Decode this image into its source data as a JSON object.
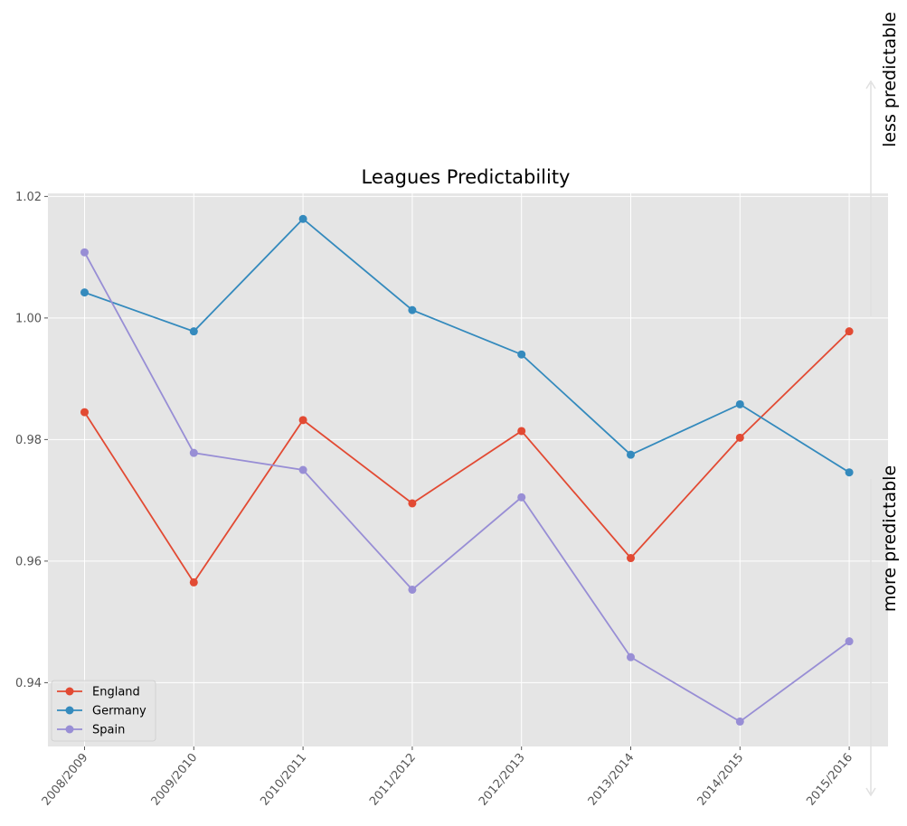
{
  "chart_data": {
    "type": "line",
    "title": "Leagues Predictability",
    "xlabel": "",
    "ylabel": "",
    "categories": [
      "2008/2009",
      "2009/2010",
      "2010/2011",
      "2011/2012",
      "2012/2013",
      "2013/2014",
      "2014/2015",
      "2015/2016"
    ],
    "ylim": [
      0.9295,
      1.0205
    ],
    "yticks": [
      0.94,
      0.96,
      0.98,
      1.0,
      1.02
    ],
    "ytick_labels": [
      "0.94",
      "0.96",
      "0.98",
      "1.00",
      "1.02"
    ],
    "grid": true,
    "legend_position": "lower-left",
    "series": [
      {
        "name": "England",
        "color": "#E24A33",
        "marker": "circle",
        "values": [
          0.9845,
          0.9565,
          0.9832,
          0.9695,
          0.9814,
          0.9605,
          0.9803,
          0.9978
        ]
      },
      {
        "name": "Germany",
        "color": "#348ABD",
        "marker": "circle",
        "values": [
          1.0042,
          0.9978,
          1.0163,
          1.0013,
          0.994,
          0.9775,
          0.9858,
          0.9746
        ]
      },
      {
        "name": "Spain",
        "color": "#988ED5",
        "marker": "circle",
        "values": [
          1.0108,
          0.9778,
          0.975,
          0.9553,
          0.9705,
          0.9442,
          0.9336,
          0.9468
        ]
      }
    ],
    "annotations": {
      "top": "less predictable",
      "bottom": "more predictable"
    },
    "colors": {
      "plot_background": "#E5E5E5",
      "grid": "#FFFFFF",
      "arrow": "#E0E0E0"
    }
  }
}
